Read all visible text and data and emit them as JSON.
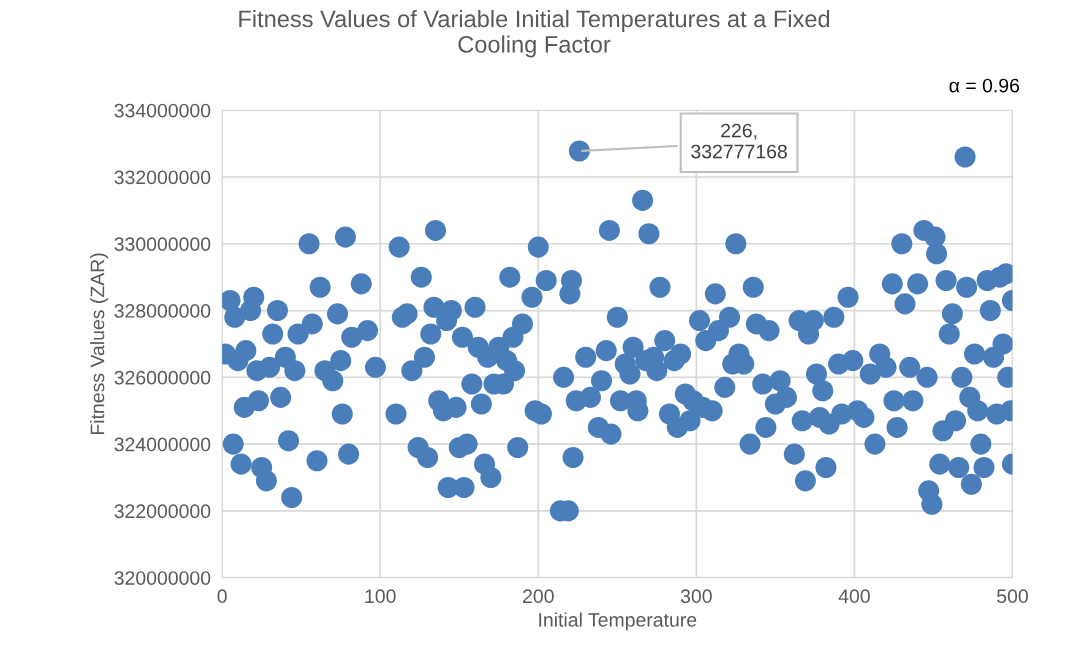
{
  "chart_data": {
    "type": "scatter",
    "title": "Fitness Values of Variable Initial Temperatures at a Fixed\nCooling Factor",
    "xlabel": "Initial Temperature",
    "ylabel": "Fitness Values (ZAR)",
    "xlim": [
      0,
      500
    ],
    "xticks": [
      0,
      100,
      200,
      300,
      400,
      500
    ],
    "ylim": [
      320000000,
      334000000
    ],
    "yticks": [
      320000000,
      322000000,
      324000000,
      326000000,
      328000000,
      330000000,
      332000000,
      334000000
    ],
    "grid": true,
    "marker": "circle",
    "annotations": [
      {
        "text": "226,\n332777168",
        "x": 226,
        "y": 332777168
      },
      "α = 0.96"
    ],
    "series": [
      {
        "color": "#4a7ebb",
        "x": [
          2,
          5,
          7,
          8,
          10,
          12,
          14,
          15,
          18,
          20,
          22,
          23,
          25,
          28,
          30,
          32,
          35,
          37,
          40,
          42,
          44,
          46,
          48,
          55,
          57,
          60,
          62,
          65,
          70,
          73,
          75,
          76,
          78,
          80,
          82,
          88,
          92,
          97,
          110,
          112,
          114,
          117,
          120,
          124,
          126,
          128,
          130,
          132,
          134,
          135,
          137,
          140,
          142,
          143,
          145,
          148,
          150,
          152,
          153,
          155,
          158,
          160,
          162,
          164,
          166,
          168,
          170,
          172,
          175,
          178,
          180,
          182,
          184,
          185,
          187,
          190,
          196,
          198,
          200,
          202,
          205,
          214,
          216,
          219,
          220,
          221,
          222,
          224,
          226,
          230,
          233,
          238,
          240,
          243,
          245,
          246,
          250,
          252,
          255,
          258,
          260,
          262,
          263,
          266,
          268,
          270,
          273,
          275,
          277,
          280,
          283,
          286,
          288,
          290,
          293,
          296,
          298,
          302,
          304,
          306,
          310,
          312,
          314,
          318,
          321,
          323,
          325,
          327,
          330,
          334,
          336,
          338,
          342,
          344,
          346,
          350,
          353,
          357,
          362,
          365,
          367,
          369,
          371,
          374,
          376,
          378,
          380,
          382,
          384,
          387,
          390,
          392,
          396,
          399,
          402,
          406,
          410,
          413,
          416,
          420,
          424,
          425,
          427,
          430,
          432,
          435,
          437,
          440,
          444,
          446,
          447,
          449,
          451,
          452,
          454,
          456,
          458,
          460,
          462,
          464,
          466,
          468,
          470,
          471,
          473,
          474,
          476,
          478,
          480,
          482,
          484,
          486,
          488,
          490,
          492,
          494,
          496,
          497,
          499,
          500,
          500
        ],
        "values": [
          326700000,
          328300000,
          324000000,
          327800000,
          326500000,
          323400000,
          325100000,
          326800000,
          328000000,
          328400000,
          326200000,
          325300000,
          323300000,
          322900000,
          326300000,
          327300000,
          328000000,
          325400000,
          326600000,
          324100000,
          322400000,
          326200000,
          327300000,
          330000000,
          327600000,
          323500000,
          328700000,
          326200000,
          325900000,
          327900000,
          326500000,
          324900000,
          330200000,
          323700000,
          327200000,
          328800000,
          327400000,
          326300000,
          324900000,
          329900000,
          327800000,
          327900000,
          326200000,
          323900000,
          329000000,
          326600000,
          323600000,
          327300000,
          328100000,
          330400000,
          325300000,
          325000000,
          327700000,
          322700000,
          328000000,
          325100000,
          323900000,
          327200000,
          322700000,
          324000000,
          325800000,
          328100000,
          326900000,
          325200000,
          323400000,
          326600000,
          323000000,
          325800000,
          326900000,
          325800000,
          326500000,
          329000000,
          327200000,
          326200000,
          323900000,
          327600000,
          328400000,
          325000000,
          329900000,
          324900000,
          328900000,
          322000000,
          326000000,
          322000000,
          328500000,
          328900000,
          323600000,
          325300000,
          332777168,
          326600000,
          325400000,
          324500000,
          325900000,
          326800000,
          330400000,
          324300000,
          327800000,
          325300000,
          326400000,
          326100000,
          326900000,
          325300000,
          325000000,
          331300000,
          326500000,
          330300000,
          326600000,
          326200000,
          328700000,
          327100000,
          324900000,
          326500000,
          324500000,
          326700000,
          325500000,
          324700000,
          325300000,
          327700000,
          325100000,
          327100000,
          325000000,
          328500000,
          327400000,
          325700000,
          327800000,
          326400000,
          330000000,
          326700000,
          326400000,
          324000000,
          328700000,
          327600000,
          325800000,
          324500000,
          327400000,
          325200000,
          325900000,
          325400000,
          323700000,
          327700000,
          324700000,
          322900000,
          327300000,
          327700000,
          326100000,
          324800000,
          325600000,
          323300000,
          324600000,
          327800000,
          326400000,
          324900000,
          328400000,
          326500000,
          325000000,
          324800000,
          326100000,
          324000000,
          326700000,
          326300000,
          328800000,
          325300000,
          324500000,
          330000000,
          328200000,
          326300000,
          325300000,
          328800000,
          330400000,
          326000000,
          322600000,
          322200000,
          330200000,
          329700000,
          323400000,
          324400000,
          328900000,
          327300000,
          327900000,
          324700000,
          323300000,
          326000000,
          332600000,
          328700000,
          325400000,
          322800000,
          326700000,
          325000000,
          324000000,
          323300000,
          328900000,
          328000000,
          326600000,
          324900000,
          329000000,
          327000000,
          329100000,
          326000000,
          325000000,
          323400000,
          328300000
        ]
      }
    ]
  }
}
